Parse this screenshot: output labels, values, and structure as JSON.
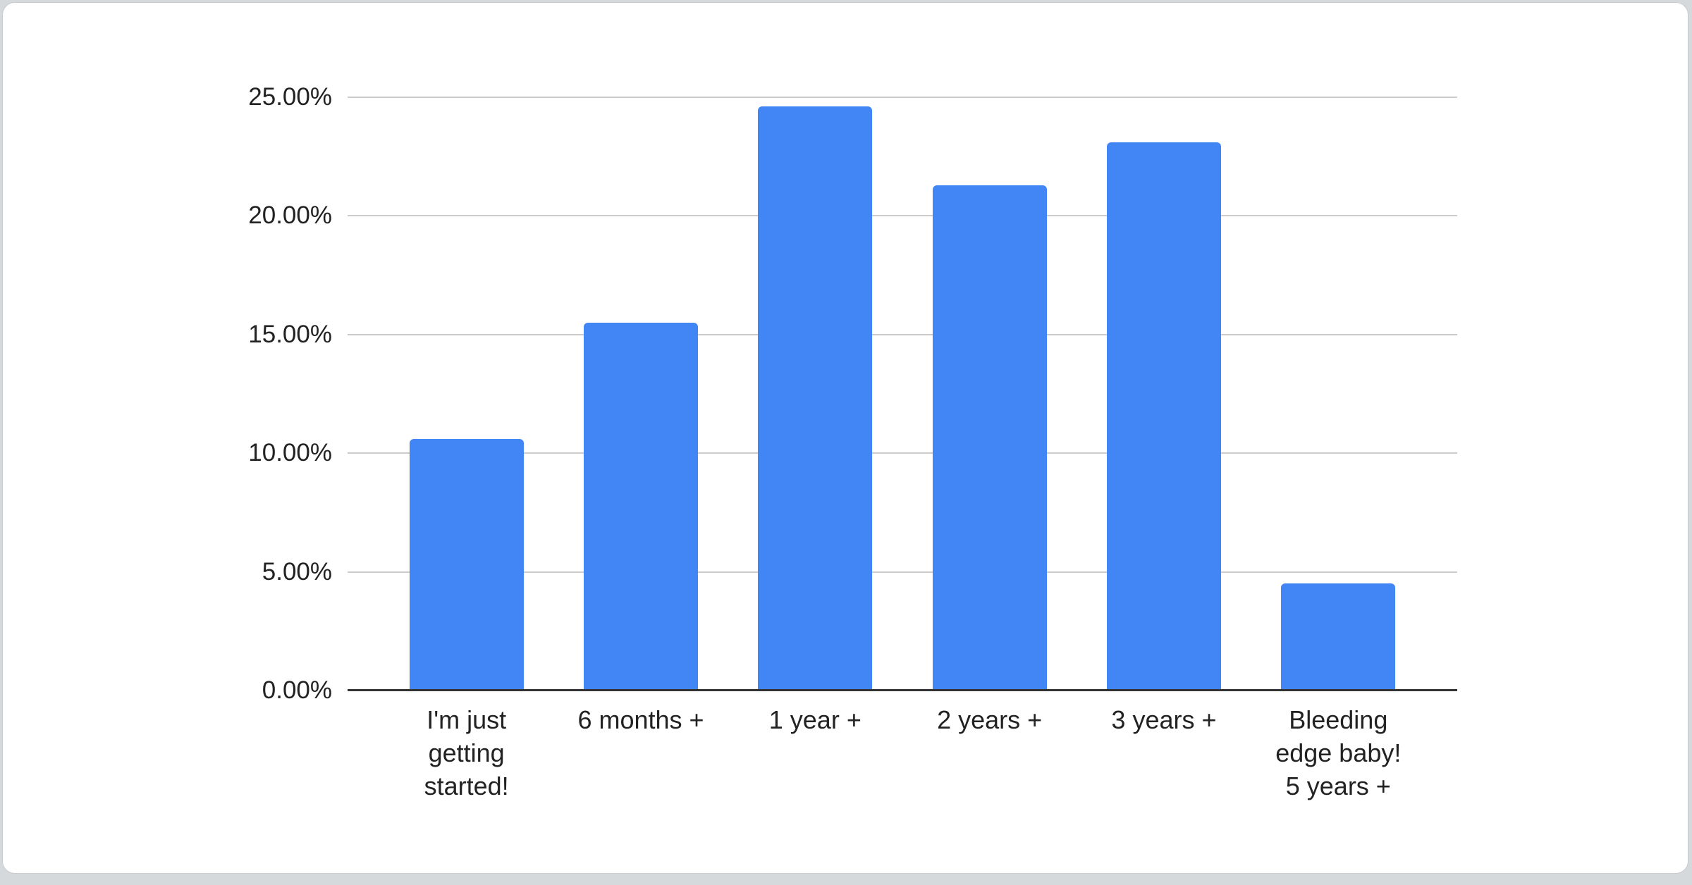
{
  "window": {
    "page_background": "#d6d9dc",
    "card_background": "#ffffff",
    "card_border": "#c8cbcf"
  },
  "chart_data": {
    "type": "bar",
    "title": "",
    "categories": [
      "I'm just getting started!",
      "6 months +",
      "1 year +",
      "2 years +",
      "3 years +",
      "Bleeding edge baby! 5 years +"
    ],
    "category_display_lines": [
      [
        "I'm just",
        "getting",
        "started!"
      ],
      [
        "6 months +"
      ],
      [
        "1 year +"
      ],
      [
        "2 years +"
      ],
      [
        "3 years +"
      ],
      [
        "Bleeding",
        "edge baby!",
        "5 years +"
      ]
    ],
    "values": [
      10.6,
      15.5,
      24.6,
      21.3,
      23.1,
      4.5
    ],
    "value_unit": "%",
    "ylim": [
      0,
      25
    ],
    "yticks": [
      {
        "value": 0,
        "label": "0.00%"
      },
      {
        "value": 5,
        "label": "5.00%"
      },
      {
        "value": 10,
        "label": "10.00%"
      },
      {
        "value": 15,
        "label": "15.00%"
      },
      {
        "value": 20,
        "label": "20.00%"
      },
      {
        "value": 25,
        "label": "25.00%"
      }
    ],
    "xlabel": "",
    "ylabel": "",
    "grid": true,
    "legend": "none",
    "bar_color": "#4285f4",
    "gridline_color": "#cccccc",
    "axis_line_color": "#333333",
    "text_color": "#222222"
  }
}
